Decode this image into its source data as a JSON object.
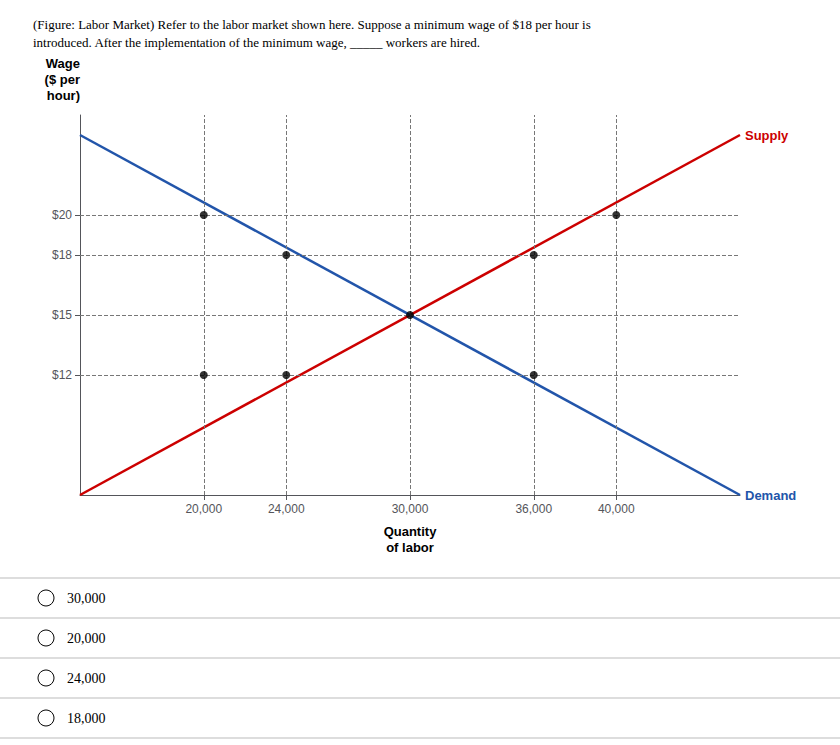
{
  "chart_data": {
    "type": "line",
    "title": "(Figure: Labor Market) Refer to the labor market shown here. Suppose a minimum wage of $18 per hour is\nintroduced. After the implementation of the minimum wage, _____ workers are hired.",
    "x_label": "Quantity\nof labor",
    "y_label": "Wage\n($ per\nhour)",
    "series": [
      {
        "name": "Supply",
        "color": "#cc0000",
        "x": [
          14000,
          46000
        ],
        "values": [
          6.0,
          24.0
        ]
      },
      {
        "name": "Demand",
        "color": "#2255aa",
        "x": [
          14000,
          46000
        ],
        "values": [
          24.0,
          6.0
        ]
      },
      {
        "type": "scatter",
        "color": "#000000",
        "x": [
          20000,
          20000,
          24000,
          24000,
          30000,
          36000,
          36000,
          40000
        ],
        "values": [
          20,
          12,
          18,
          12,
          15,
          18,
          12,
          20
        ]
      }
    ],
    "xlim": [
      14000,
      46000
    ],
    "ylim": [
      6,
      25
    ],
    "xticks": [
      {
        "value": 20000,
        "label": "20,000"
      },
      {
        "value": 24000,
        "label": "24,000"
      },
      {
        "value": 30000,
        "label": "30,000"
      },
      {
        "value": 36000,
        "label": "36,000"
      },
      {
        "value": 40000,
        "label": "40,000"
      }
    ],
    "yticks": [
      {
        "value": 12,
        "label": "$12"
      },
      {
        "value": 15,
        "label": "$15"
      },
      {
        "value": 18,
        "label": "$18"
      },
      {
        "value": 20,
        "label": "$20"
      }
    ],
    "grid": true,
    "choices": [
      "30,000",
      "20,000",
      "24,000",
      "18,000"
    ]
  }
}
